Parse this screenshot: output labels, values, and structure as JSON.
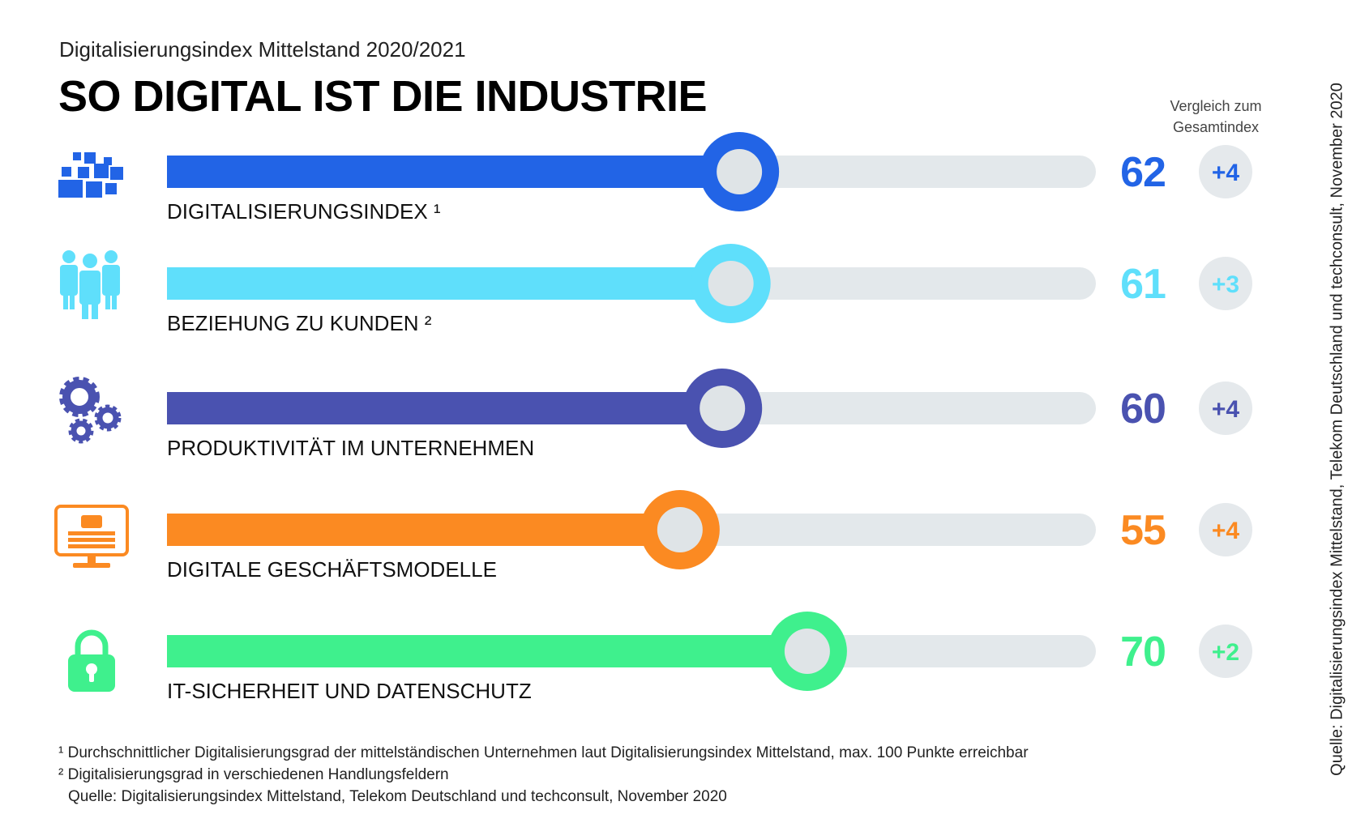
{
  "header": {
    "subtitle": "Digitalisierungsindex Mittelstand 2020/2021",
    "title": "SO DIGITAL IST DIE INDUSTRIE",
    "compare_label_line1": "Vergleich zum",
    "compare_label_line2": "Gesamtindex"
  },
  "chart_data": {
    "type": "bar",
    "orientation": "horizontal",
    "xlim": [
      0,
      100
    ],
    "categories": [
      "DIGITALISIERUNGSINDEX ¹",
      "BEZIEHUNG ZU KUNDEN ²",
      "PRODUKTIVITÄT IM UNTERNEHMEN",
      "DIGITALE GESCHÄFTSMODELLE",
      "IT-SICHERHEIT UND DATENSCHUTZ"
    ],
    "values": [
      62,
      61,
      60,
      55,
      70
    ],
    "comparison": [
      "+4",
      "+3",
      "+4",
      "+4",
      "+2"
    ],
    "colors": [
      "#2264e6",
      "#5fdffb",
      "#4a52b0",
      "#fb8a22",
      "#3ff08d"
    ],
    "icons": [
      "pixel-blocks-icon",
      "people-group-icon",
      "gears-icon",
      "monitor-icon",
      "padlock-icon"
    ],
    "track_color": "#e3e8eb",
    "knob_color": "#dfe4e7",
    "badge_color": "#e5e9ec"
  },
  "footnotes": {
    "note1": "¹ Durchschnittlicher Digitalisierungsgrad der mittelständischen Unternehmen laut Digitalisierungsindex Mittelstand, max. 100 Punkte erreichbar",
    "note2": "² Digitalisierungsgrad in verschiedenen Handlungsfeldern",
    "source": "Quelle: Digitalisierungsindex Mittelstand, Telekom Deutschland und techconsult, November 2020"
  },
  "vertical_source": "Quelle: Digitalisierungsindex Mittelstand, Telekom Deutschland und techconsult, November 2020"
}
